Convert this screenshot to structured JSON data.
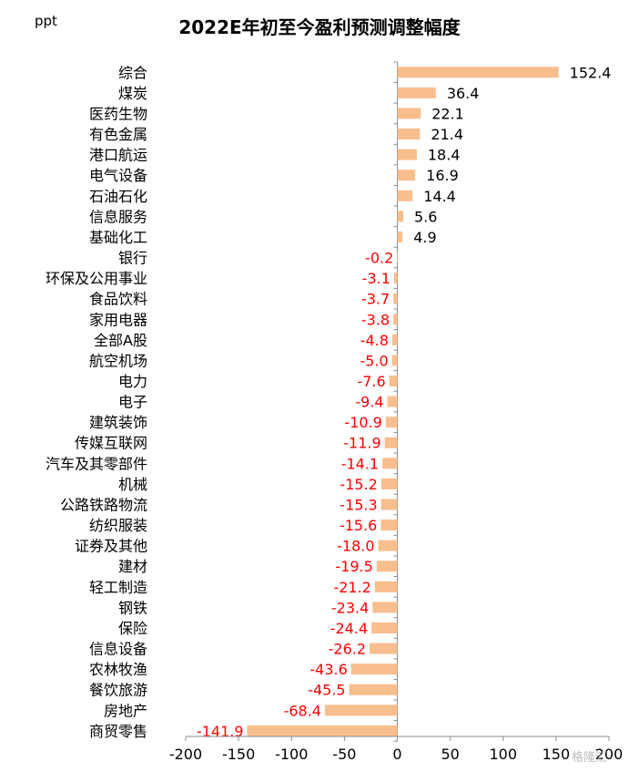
{
  "chart_data": {
    "type": "bar",
    "orientation": "horizontal",
    "title": "2022E年初至今盈利预测调整幅度",
    "unit_label": "ppt",
    "categories": [
      "综合",
      "煤炭",
      "医药生物",
      "有色金属",
      "港口航运",
      "电气设备",
      "石油石化",
      "信息服务",
      "基础化工",
      "银行",
      "环保及公用事业",
      "食品饮料",
      "家用电器",
      "全部A股",
      "航空机场",
      "电力",
      "电子",
      "建筑装饰",
      "传媒互联网",
      "汽车及其零部件",
      "机械",
      "公路铁路物流",
      "纺织服装",
      "证券及其他",
      "建材",
      "轻工制造",
      "钢铁",
      "保险",
      "信息设备",
      "农林牧渔",
      "餐饮旅游",
      "房地产",
      "商贸零售"
    ],
    "values": [
      152.4,
      36.4,
      22.1,
      21.4,
      18.4,
      16.9,
      14.4,
      5.6,
      4.9,
      -0.2,
      -3.1,
      -3.7,
      -3.8,
      -4.8,
      -5.0,
      -7.6,
      -9.4,
      -10.9,
      -11.9,
      -14.1,
      -15.2,
      -15.3,
      -15.6,
      -18.0,
      -19.5,
      -21.2,
      -23.4,
      -24.4,
      -26.2,
      -43.6,
      -45.5,
      -68.4,
      -141.9
    ],
    "value_labels": [
      "152.4",
      "36.4",
      "22.1",
      "21.4",
      "18.4",
      "16.9",
      "14.4",
      "5.6",
      "4.9",
      "-0.2",
      "-3.1",
      "-3.7",
      "-3.8",
      "-4.8",
      "-5.0",
      "-7.6",
      "-9.4",
      "-10.9",
      "-11.9",
      "-14.1",
      "-15.2",
      "-15.3",
      "-15.6",
      "-18.0",
      "-19.5",
      "-21.2",
      "-23.4",
      "-24.4",
      "-26.2",
      "-43.6",
      "-45.5",
      "-68.4",
      "-141.9"
    ],
    "xlim": [
      -200,
      200
    ],
    "xticks": [
      "-200",
      "-150",
      "-100",
      "-50",
      "0",
      "50",
      "100",
      "150",
      "200"
    ],
    "grid": false,
    "bar_color": "#f9be8e",
    "positive_label_color": "#000000",
    "negative_label_color": "#ff0000"
  },
  "watermark": "格隆汇"
}
